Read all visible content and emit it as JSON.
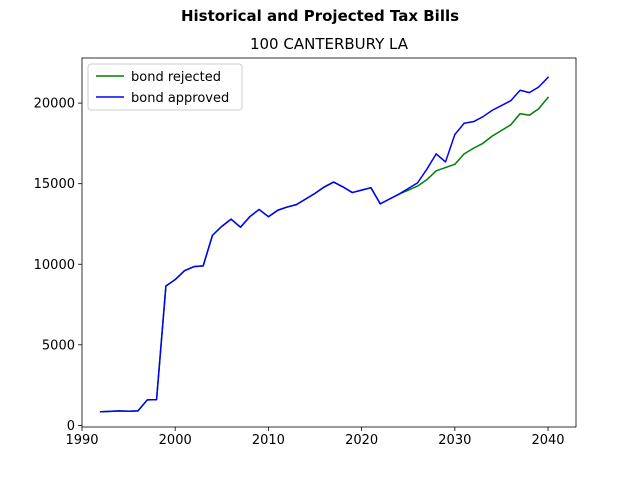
{
  "chart_data": {
    "type": "line",
    "title": "Historical and Projected Tax Bills",
    "subtitle": "100 CANTERBURY LA",
    "xlabel": "",
    "ylabel": "",
    "xlim": [
      1990,
      2043
    ],
    "ylim": [
      -100,
      22800
    ],
    "x_ticks": [
      1990,
      2000,
      2010,
      2020,
      2030,
      2040
    ],
    "y_ticks": [
      0,
      5000,
      10000,
      15000,
      20000
    ],
    "legend_position": "upper-left",
    "grid": false,
    "series": [
      {
        "name": "bond rejected",
        "color": "#008000",
        "x": [
          1992,
          1993,
          1994,
          1995,
          1996,
          1997,
          1998,
          1999,
          2000,
          2001,
          2002,
          2003,
          2004,
          2005,
          2006,
          2007,
          2008,
          2009,
          2010,
          2011,
          2012,
          2013,
          2014,
          2015,
          2016,
          2017,
          2018,
          2019,
          2020,
          2021,
          2022,
          2023,
          2024,
          2025,
          2026,
          2027,
          2028,
          2029,
          2030,
          2031,
          2032,
          2033,
          2034,
          2035,
          2036,
          2037,
          2038,
          2039,
          2040
        ],
        "y": [
          850,
          870,
          900,
          880,
          900,
          1580,
          1600,
          8650,
          9050,
          9600,
          9850,
          9900,
          11800,
          12350,
          12800,
          12300,
          12950,
          13400,
          12950,
          13350,
          13550,
          13700,
          14050,
          14400,
          14800,
          15100,
          14800,
          14450,
          14600,
          14750,
          13750,
          14050,
          14350,
          14600,
          14850,
          15250,
          15800,
          16000,
          16200,
          16850,
          17200,
          17500,
          17950,
          18300,
          18650,
          19350,
          19250,
          19650,
          20350
        ]
      },
      {
        "name": "bond approved",
        "color": "#0000ff",
        "x": [
          1992,
          1993,
          1994,
          1995,
          1996,
          1997,
          1998,
          1999,
          2000,
          2001,
          2002,
          2003,
          2004,
          2005,
          2006,
          2007,
          2008,
          2009,
          2010,
          2011,
          2012,
          2013,
          2014,
          2015,
          2016,
          2017,
          2018,
          2019,
          2020,
          2021,
          2022,
          2023,
          2024,
          2025,
          2026,
          2027,
          2028,
          2029,
          2030,
          2031,
          2032,
          2033,
          2034,
          2035,
          2036,
          2037,
          2038,
          2039,
          2040
        ],
        "y": [
          850,
          870,
          900,
          880,
          900,
          1580,
          1600,
          8650,
          9050,
          9600,
          9850,
          9900,
          11800,
          12350,
          12800,
          12300,
          12950,
          13400,
          12950,
          13350,
          13550,
          13700,
          14050,
          14400,
          14800,
          15100,
          14800,
          14450,
          14600,
          14750,
          13750,
          14050,
          14350,
          14700,
          15050,
          15900,
          16850,
          16350,
          18050,
          18750,
          18850,
          19150,
          19550,
          19850,
          20150,
          20800,
          20650,
          21000,
          21600
        ]
      }
    ]
  }
}
